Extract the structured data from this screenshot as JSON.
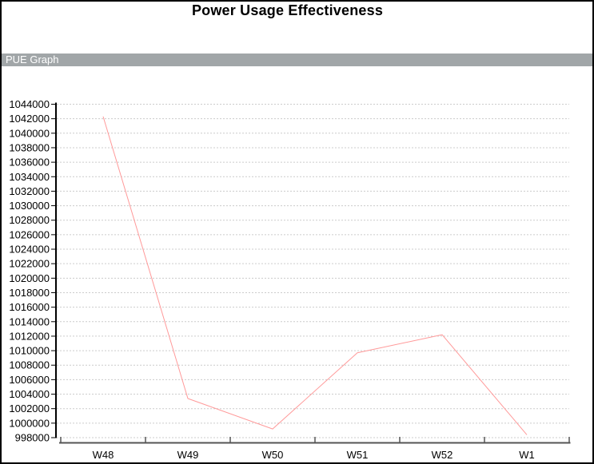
{
  "window": {
    "title": "Power Usage Effectiveness",
    "section_bar": {
      "label": "PUE Graph"
    }
  },
  "colors": {
    "series_line": "#ff9999",
    "gridline": "#cccccc",
    "section_bar_bg": "#a1a6a8",
    "section_bar_text": "#ffffff",
    "category_axis": "#555555",
    "value_axis": "#000000",
    "tick_label_text": "#000000",
    "page_border": "#000000",
    "background": "#ffffff"
  },
  "chart_data": {
    "type": "line",
    "title": "Power Usage Effectiveness",
    "subtitle_bar": "PUE Graph",
    "categories": [
      "W48",
      "W49",
      "W50",
      "W51",
      "W52",
      "W1"
    ],
    "values": [
      1042300,
      1003400,
      999200,
      1009700,
      1012200,
      998400
    ],
    "xlabel": "",
    "ylabel": "",
    "ylim": [
      998000,
      1044000
    ],
    "ytick_step": 2000,
    "ytick_labels": [
      "998000",
      "1000000",
      "1002000",
      "1004000",
      "1006000",
      "1008000",
      "1010000",
      "1012000",
      "1014000",
      "1016000",
      "1018000",
      "1020000",
      "1022000",
      "1024000",
      "1026000",
      "1028000",
      "1030000",
      "1032000",
      "1034000",
      "1036000",
      "1038000",
      "1040000",
      "1042000",
      "1044000"
    ],
    "grid": "horizontal-dotted",
    "legend_position": "none",
    "line_width": 1
  }
}
